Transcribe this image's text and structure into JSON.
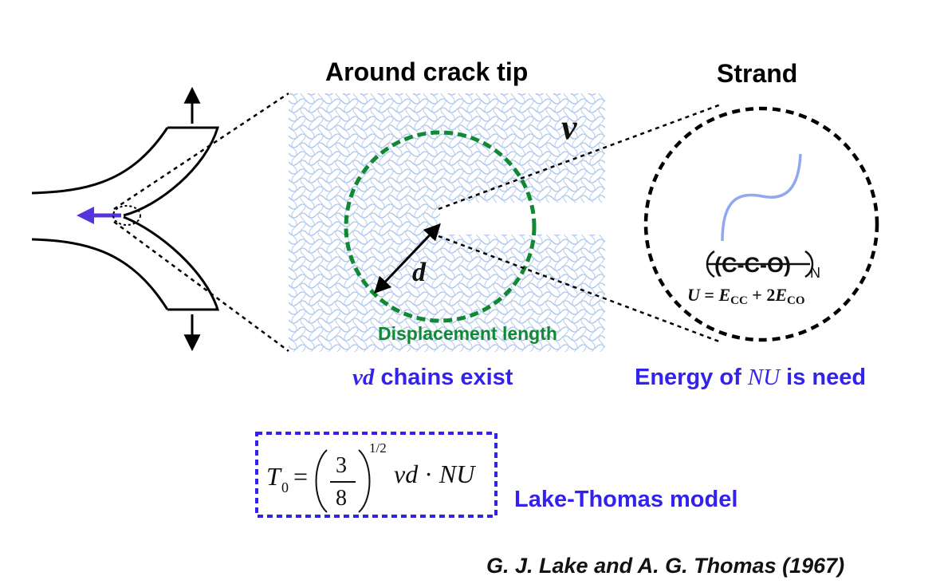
{
  "titles": {
    "around": "Around crack tip",
    "strand": "Strand"
  },
  "labels": {
    "nu": "ν",
    "d": "d",
    "displacement": "Displacement length",
    "chains_var": "νd",
    "chains_text": "chains exist",
    "energy_pre": "Energy of",
    "energy_var": "NU",
    "energy_post": "is need",
    "model": "Lake-Thomas model",
    "citation": "G. J. Lake and A. G. Thomas (1967)"
  },
  "strand": {
    "formula": "(C-C-O)",
    "subscript": "N",
    "energy_U": "U",
    "energy_eq": " = ",
    "energy_E1": "E",
    "energy_E1_sub": "CC",
    "energy_plus": " + 2",
    "energy_E2": "E",
    "energy_E2_sub": "CO"
  },
  "equation": {
    "lhs": "T",
    "lhs_sub": "0",
    "equals": "=",
    "num": "3",
    "den": "8",
    "exponent": "1/2",
    "rhs_vars": "νd",
    "dot": " · ",
    "rhs_NU": "NU"
  },
  "colors": {
    "accent_blue": "#3322ee",
    "green": "#118833",
    "mesh": "#a9c4ec",
    "strand_curve": "#8fa8f0"
  }
}
